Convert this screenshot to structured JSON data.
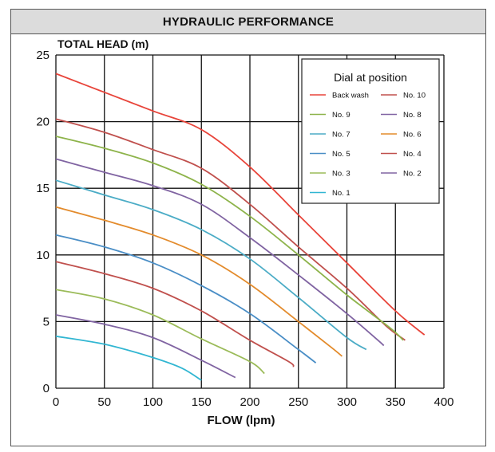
{
  "header": {
    "title": "HYDRAULIC PERFORMANCE"
  },
  "chart_data": {
    "type": "line",
    "ylabel": "TOTAL HEAD (m)",
    "xlabel": "FLOW (lpm)",
    "xlim": [
      0,
      400
    ],
    "ylim": [
      0,
      25
    ],
    "xticks": [
      0,
      50,
      100,
      150,
      200,
      250,
      300,
      350,
      400
    ],
    "yticks": [
      0,
      5,
      10,
      15,
      20,
      25
    ],
    "grid": true,
    "legend": {
      "title": "Dial at position",
      "placement": "top-right"
    },
    "series": [
      {
        "name": "Back wash",
        "color": "#e8443a",
        "points": [
          [
            0,
            23.6
          ],
          [
            50,
            22.2
          ],
          [
            100,
            20.8
          ],
          [
            150,
            19.4
          ],
          [
            200,
            16.6
          ],
          [
            250,
            13.0
          ],
          [
            300,
            9.4
          ],
          [
            350,
            5.8
          ],
          [
            380,
            4.0
          ]
        ]
      },
      {
        "name": "No. 10",
        "color": "#c0504d",
        "points": [
          [
            0,
            20.2
          ],
          [
            50,
            19.2
          ],
          [
            100,
            17.9
          ],
          [
            150,
            16.5
          ],
          [
            200,
            13.8
          ],
          [
            250,
            10.6
          ],
          [
            300,
            7.5
          ],
          [
            340,
            4.7
          ],
          [
            360,
            3.6
          ]
        ]
      },
      {
        "name": "No. 9",
        "color": "#8db34a",
        "points": [
          [
            0,
            18.9
          ],
          [
            50,
            18.0
          ],
          [
            100,
            16.9
          ],
          [
            150,
            15.3
          ],
          [
            200,
            12.9
          ],
          [
            250,
            10.0
          ],
          [
            300,
            7.0
          ],
          [
            345,
            4.5
          ],
          [
            358,
            3.6
          ]
        ]
      },
      {
        "name": "No. 8",
        "color": "#8064a2",
        "points": [
          [
            0,
            17.2
          ],
          [
            50,
            16.2
          ],
          [
            100,
            15.2
          ],
          [
            150,
            13.8
          ],
          [
            200,
            11.3
          ],
          [
            250,
            8.5
          ],
          [
            300,
            5.6
          ],
          [
            332,
            3.6
          ],
          [
            338,
            3.2
          ]
        ]
      },
      {
        "name": "No. 7",
        "color": "#4bacc6",
        "points": [
          [
            0,
            15.6
          ],
          [
            50,
            14.5
          ],
          [
            100,
            13.4
          ],
          [
            150,
            11.9
          ],
          [
            200,
            9.7
          ],
          [
            250,
            6.8
          ],
          [
            300,
            3.8
          ],
          [
            320,
            2.9
          ]
        ]
      },
      {
        "name": "No. 6",
        "color": "#e38b2c",
        "points": [
          [
            0,
            13.6
          ],
          [
            50,
            12.6
          ],
          [
            100,
            11.5
          ],
          [
            150,
            10.0
          ],
          [
            200,
            7.8
          ],
          [
            250,
            5.0
          ],
          [
            285,
            3.0
          ],
          [
            295,
            2.4
          ]
        ]
      },
      {
        "name": "No. 5",
        "color": "#4a8ec6",
        "points": [
          [
            0,
            11.5
          ],
          [
            50,
            10.6
          ],
          [
            100,
            9.4
          ],
          [
            150,
            7.7
          ],
          [
            200,
            5.6
          ],
          [
            250,
            2.9
          ],
          [
            268,
            1.9
          ]
        ]
      },
      {
        "name": "No. 4",
        "color": "#c0504d",
        "points": [
          [
            0,
            9.5
          ],
          [
            50,
            8.6
          ],
          [
            100,
            7.5
          ],
          [
            150,
            5.8
          ],
          [
            200,
            3.6
          ],
          [
            240,
            2.0
          ],
          [
            245,
            1.6
          ]
        ]
      },
      {
        "name": "No. 3",
        "color": "#9bbb59",
        "points": [
          [
            0,
            7.4
          ],
          [
            50,
            6.7
          ],
          [
            100,
            5.5
          ],
          [
            150,
            3.7
          ],
          [
            200,
            2.0
          ],
          [
            215,
            1.1
          ]
        ]
      },
      {
        "name": "No. 2",
        "color": "#8064a2",
        "points": [
          [
            0,
            5.5
          ],
          [
            50,
            4.8
          ],
          [
            100,
            3.8
          ],
          [
            150,
            2.1
          ],
          [
            185,
            0.8
          ]
        ]
      },
      {
        "name": "No. 1",
        "color": "#31b6d2",
        "points": [
          [
            0,
            3.9
          ],
          [
            50,
            3.3
          ],
          [
            100,
            2.3
          ],
          [
            130,
            1.5
          ],
          [
            150,
            0.6
          ]
        ]
      }
    ]
  }
}
